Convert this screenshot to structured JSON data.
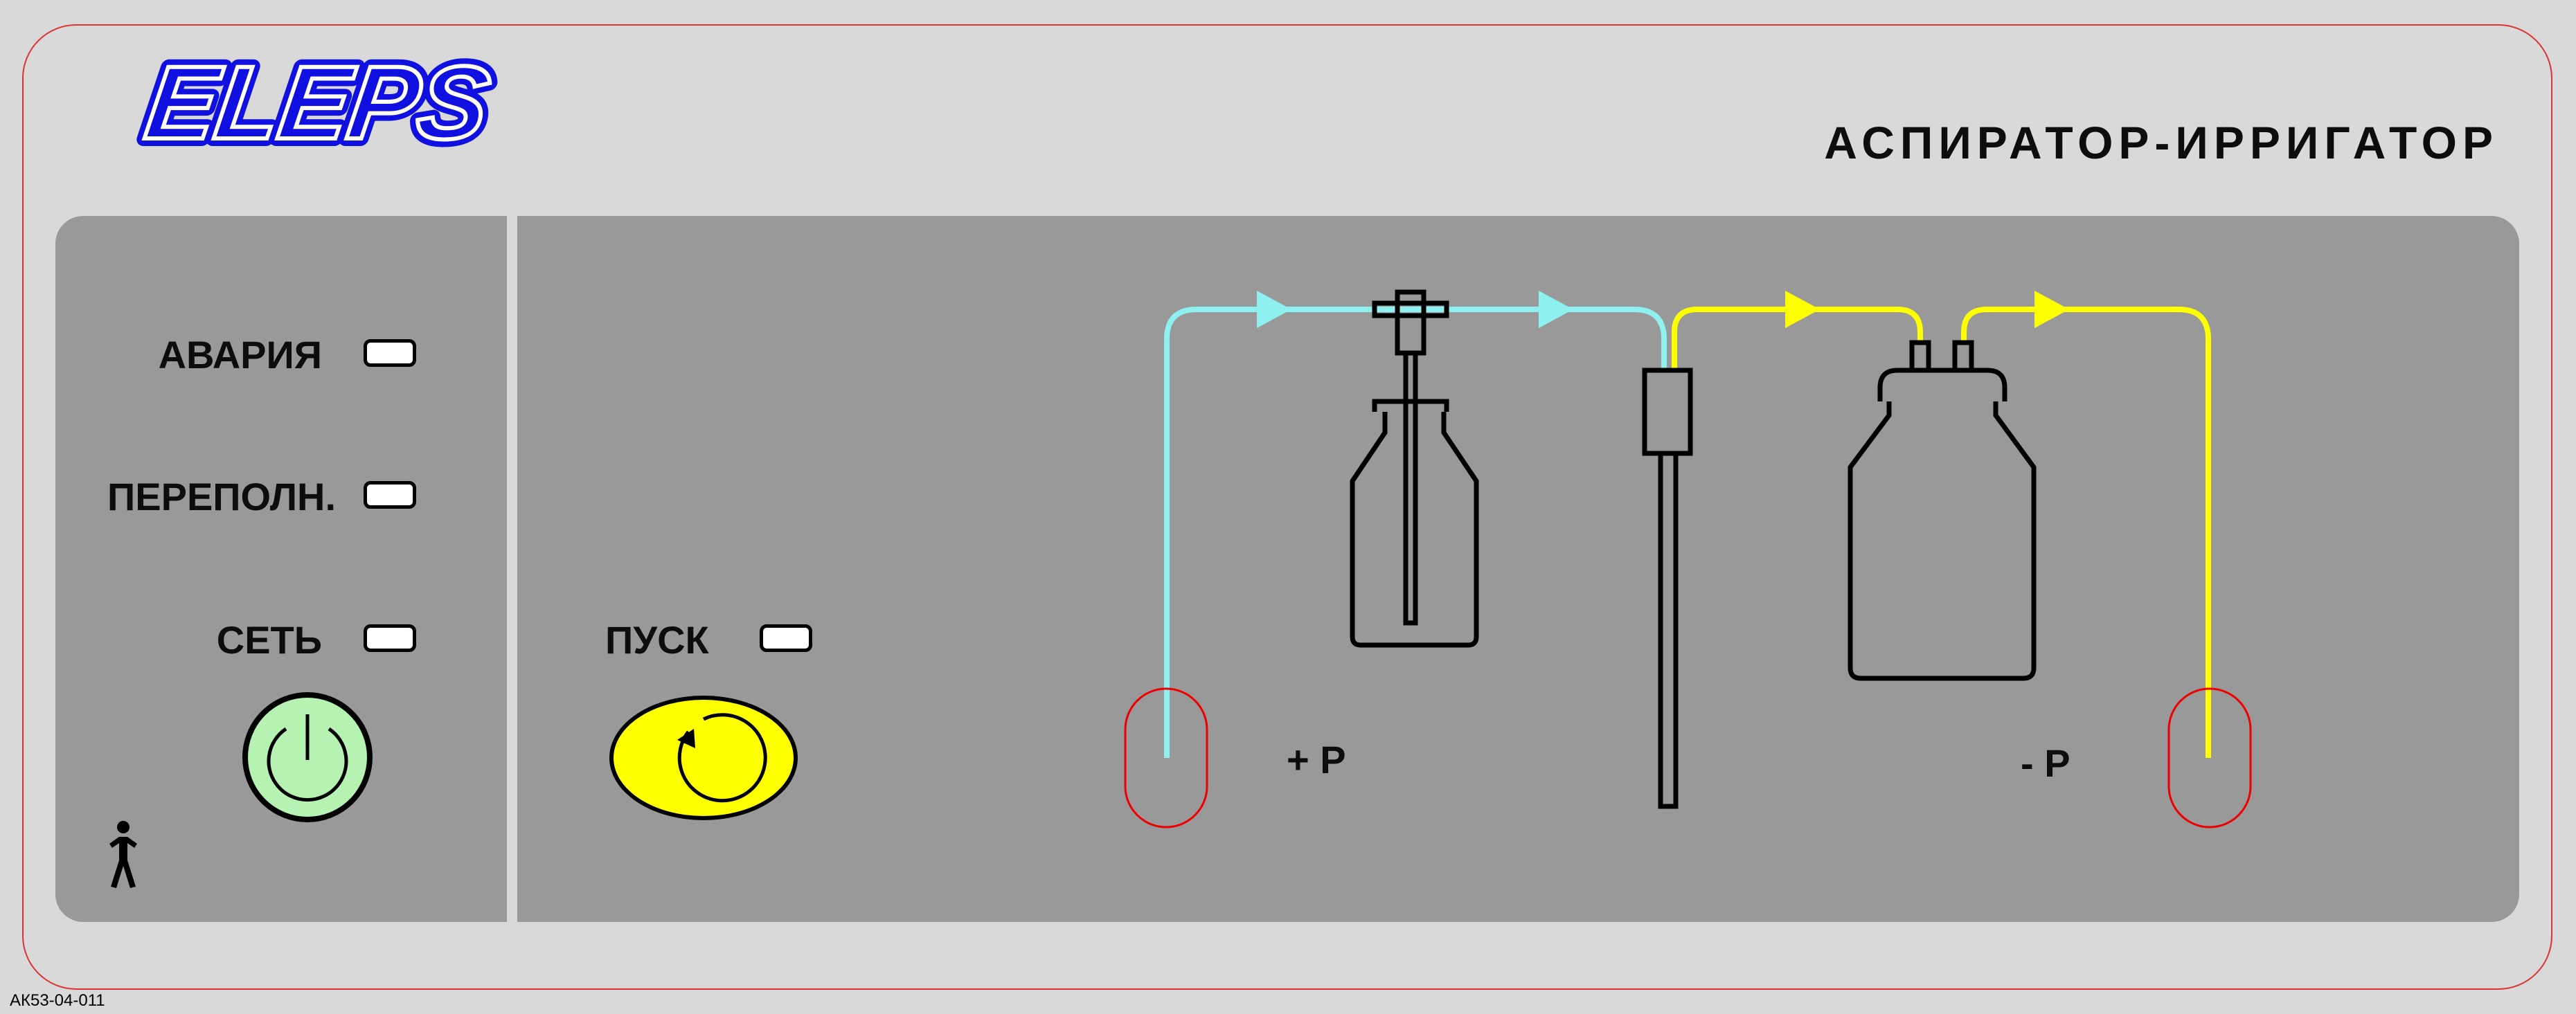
{
  "brand": {
    "logo_text": "ELEPS",
    "color": "#1010e0"
  },
  "header": {
    "title": "АСПИРАТОР-ИРРИГАТОР"
  },
  "indicators": [
    {
      "label": "АВАРИЯ"
    },
    {
      "label": "ПЕРЕПОЛН."
    },
    {
      "label": "СЕТЬ"
    }
  ],
  "power": {
    "icon": "power-icon",
    "color": "#b6f2b2"
  },
  "start": {
    "label": "ПУСК",
    "icon": "rotate-icon",
    "color": "#ffff00"
  },
  "diagram": {
    "irrigation_label": "+ P",
    "aspiration_label": "- P",
    "irrigation_line_color": "#8ff0f0",
    "aspiration_line_color": "#ffff00"
  },
  "footer": {
    "code": "АК53-04-011"
  }
}
